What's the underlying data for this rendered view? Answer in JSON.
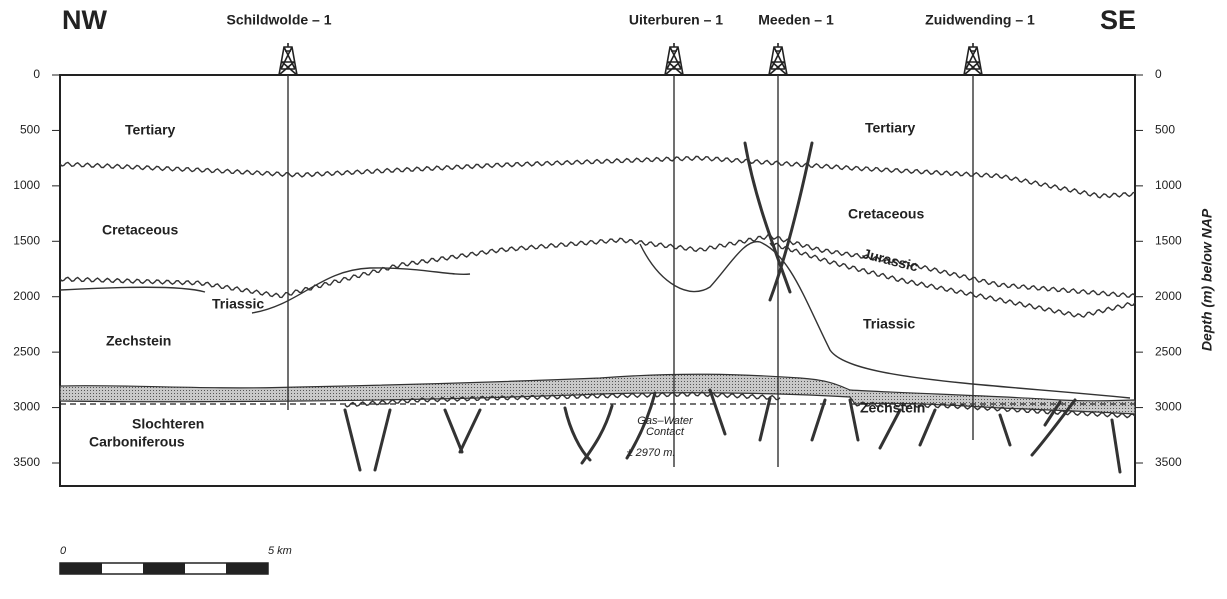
{
  "header": {
    "left": "NW",
    "right": "SE"
  },
  "wells": [
    {
      "label": "Schildwolde – 1"
    },
    {
      "label": "Uiterburen – 1"
    },
    {
      "label": "Meeden – 1"
    },
    {
      "label": "Zuidwending – 1"
    }
  ],
  "depth_axis": {
    "label": "Depth (m) below NAP",
    "ticks": [
      0,
      500,
      1000,
      1500,
      2000,
      2500,
      3000,
      3500
    ]
  },
  "units": [
    {
      "label": "Tertiary"
    },
    {
      "label": "Cretaceous"
    },
    {
      "label": "Triassic"
    },
    {
      "label": "Zechstein"
    },
    {
      "label": "Slochteren"
    },
    {
      "label": "Carboniferous"
    },
    {
      "label": "Tertiary"
    },
    {
      "label": "Cretaceous"
    },
    {
      "label": "Jurassic"
    },
    {
      "label": "Triassic"
    },
    {
      "label": "Zechstein"
    }
  ],
  "contact": {
    "lines": [
      "Gas–Water",
      "Contact",
      "± 2970 m."
    ]
  },
  "scale_bar": {
    "start": "0",
    "end": "5 km"
  }
}
